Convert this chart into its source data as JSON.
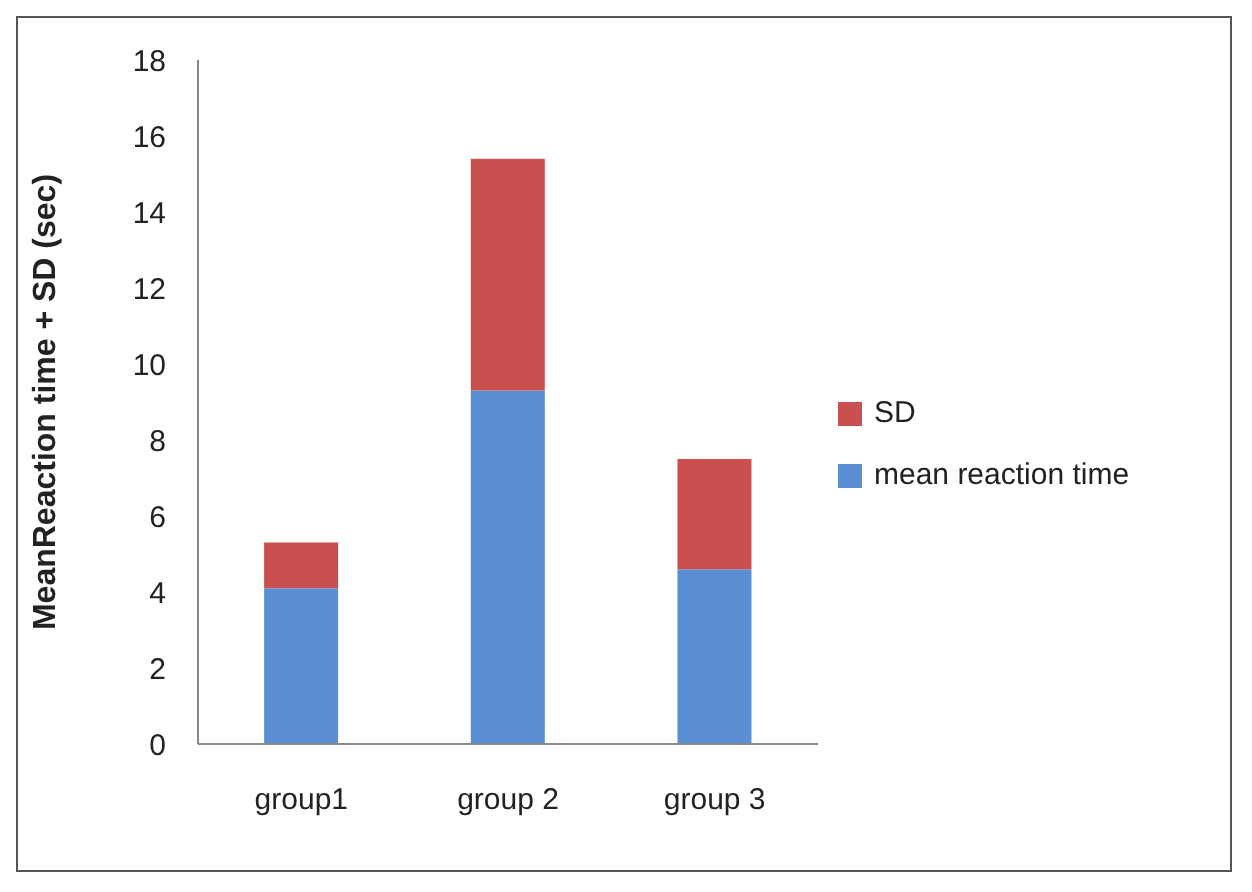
{
  "chart_data": {
    "type": "bar",
    "ylabel": "MeanReaction time  + SD (sec)",
    "categories": [
      "group1",
      "group 2",
      "group 3"
    ],
    "series": [
      {
        "name": "mean reaction time",
        "color": "#5b8fd4",
        "values": [
          4.1,
          9.3,
          4.6
        ]
      },
      {
        "name": "SD",
        "color": "#c9504f",
        "values": [
          1.2,
          6.1,
          2.9
        ]
      }
    ],
    "stacked": true,
    "ylim": [
      0,
      18
    ],
    "yticks": [
      0,
      2,
      4,
      6,
      8,
      10,
      12,
      14,
      16,
      18
    ],
    "grid": false,
    "legend": "right"
  }
}
